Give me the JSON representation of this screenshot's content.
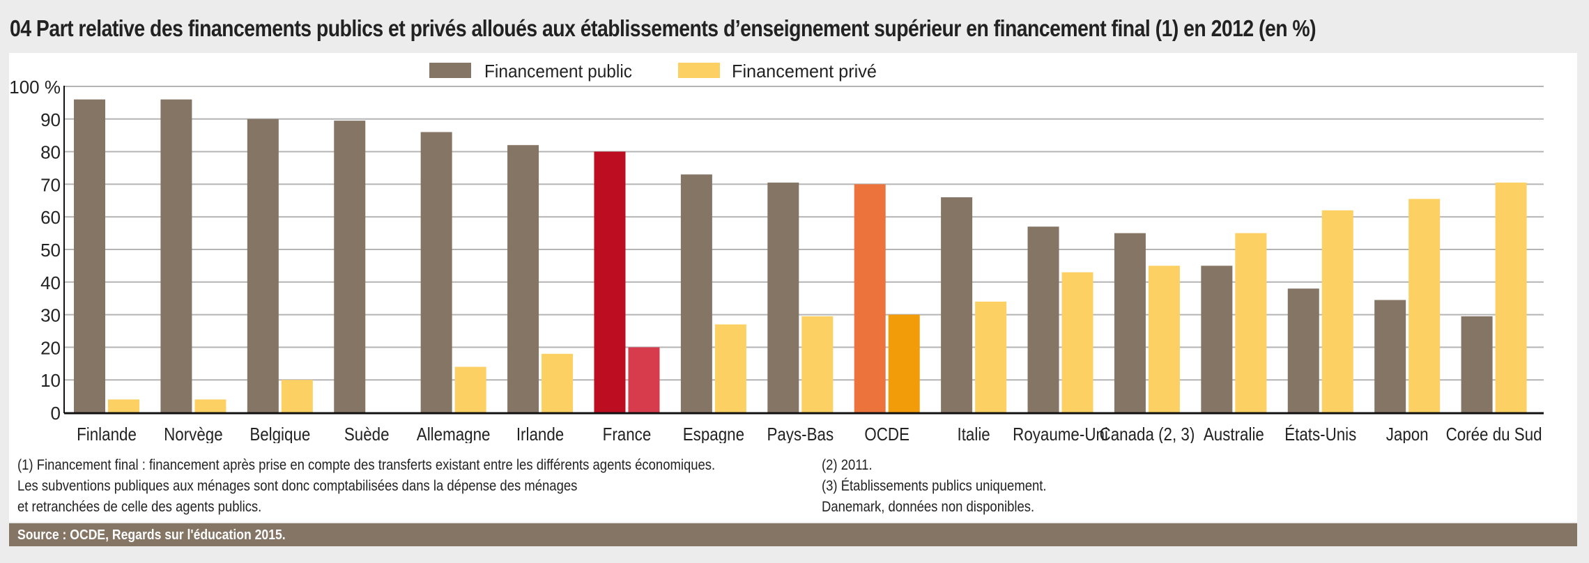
{
  "header": {
    "title": "04   Part relative des financements publics et privés alloués aux établissements d’enseignement supérieur en financement final (1) en 2012 (en %)"
  },
  "colors": {
    "public": "#857565",
    "prive": "#fcd062",
    "france_public": "#bd0e21",
    "france_prive": "#d63c4c",
    "ocde_public": "#ec733b",
    "ocde_prive": "#f39c09",
    "grid": "#b4b4b4",
    "axis": "#111111",
    "source_bar": "#857565"
  },
  "chart_data": {
    "type": "bar",
    "title": "Part relative des financements publics et privés alloués aux établissements d’enseignement supérieur en financement final (1) en 2012 (en %)",
    "xlabel": "",
    "ylabel": "",
    "ylim": [
      0,
      100
    ],
    "yticks": [
      0,
      10,
      20,
      30,
      40,
      50,
      60,
      70,
      80,
      90,
      100
    ],
    "ytick_labels": [
      "0",
      "10",
      "20",
      "30",
      "40",
      "50",
      "60",
      "70",
      "80",
      "90",
      "100 %"
    ],
    "grid": true,
    "legend_position": "top-center",
    "categories": [
      "Finlande",
      "Norvège",
      "Belgique",
      "Suède",
      "Allemagne",
      "Irlande",
      "France",
      "Espagne",
      "Pays-Bas",
      "OCDE",
      "Italie",
      "Royaume-Uni",
      "Canada (2, 3)",
      "Australie",
      "États-Unis",
      "Japon",
      "Corée du Sud"
    ],
    "series": [
      {
        "name": "Financement public",
        "values": [
          96,
          96,
          90,
          89.5,
          86,
          82,
          80,
          73,
          70.5,
          70,
          66,
          57,
          55,
          45,
          38,
          34.5,
          29.5
        ]
      },
      {
        "name": "Financement privé",
        "values": [
          4,
          4,
          10,
          0,
          14,
          18,
          20,
          27,
          29.5,
          30,
          34,
          43,
          45,
          55,
          62,
          65.5,
          70.5
        ]
      }
    ],
    "highlight": {
      "France": [
        "france_public",
        "france_prive"
      ],
      "OCDE": [
        "ocde_public",
        "ocde_prive"
      ]
    }
  },
  "notes": {
    "left": [
      "(1) Financement final : financement après prise en compte des transferts existant entre les différents agents économiques.",
      "Les subventions publiques aux ménages sont donc comptabilisées dans la dépense des ménages",
      "et retranchées de celle des agents publics."
    ],
    "right": [
      "(2) 2011.",
      "(3) Établissements publics uniquement.",
      "Danemark, données non disponibles."
    ]
  },
  "source": "Source :  OCDE, Regards sur l'éducation 2015."
}
